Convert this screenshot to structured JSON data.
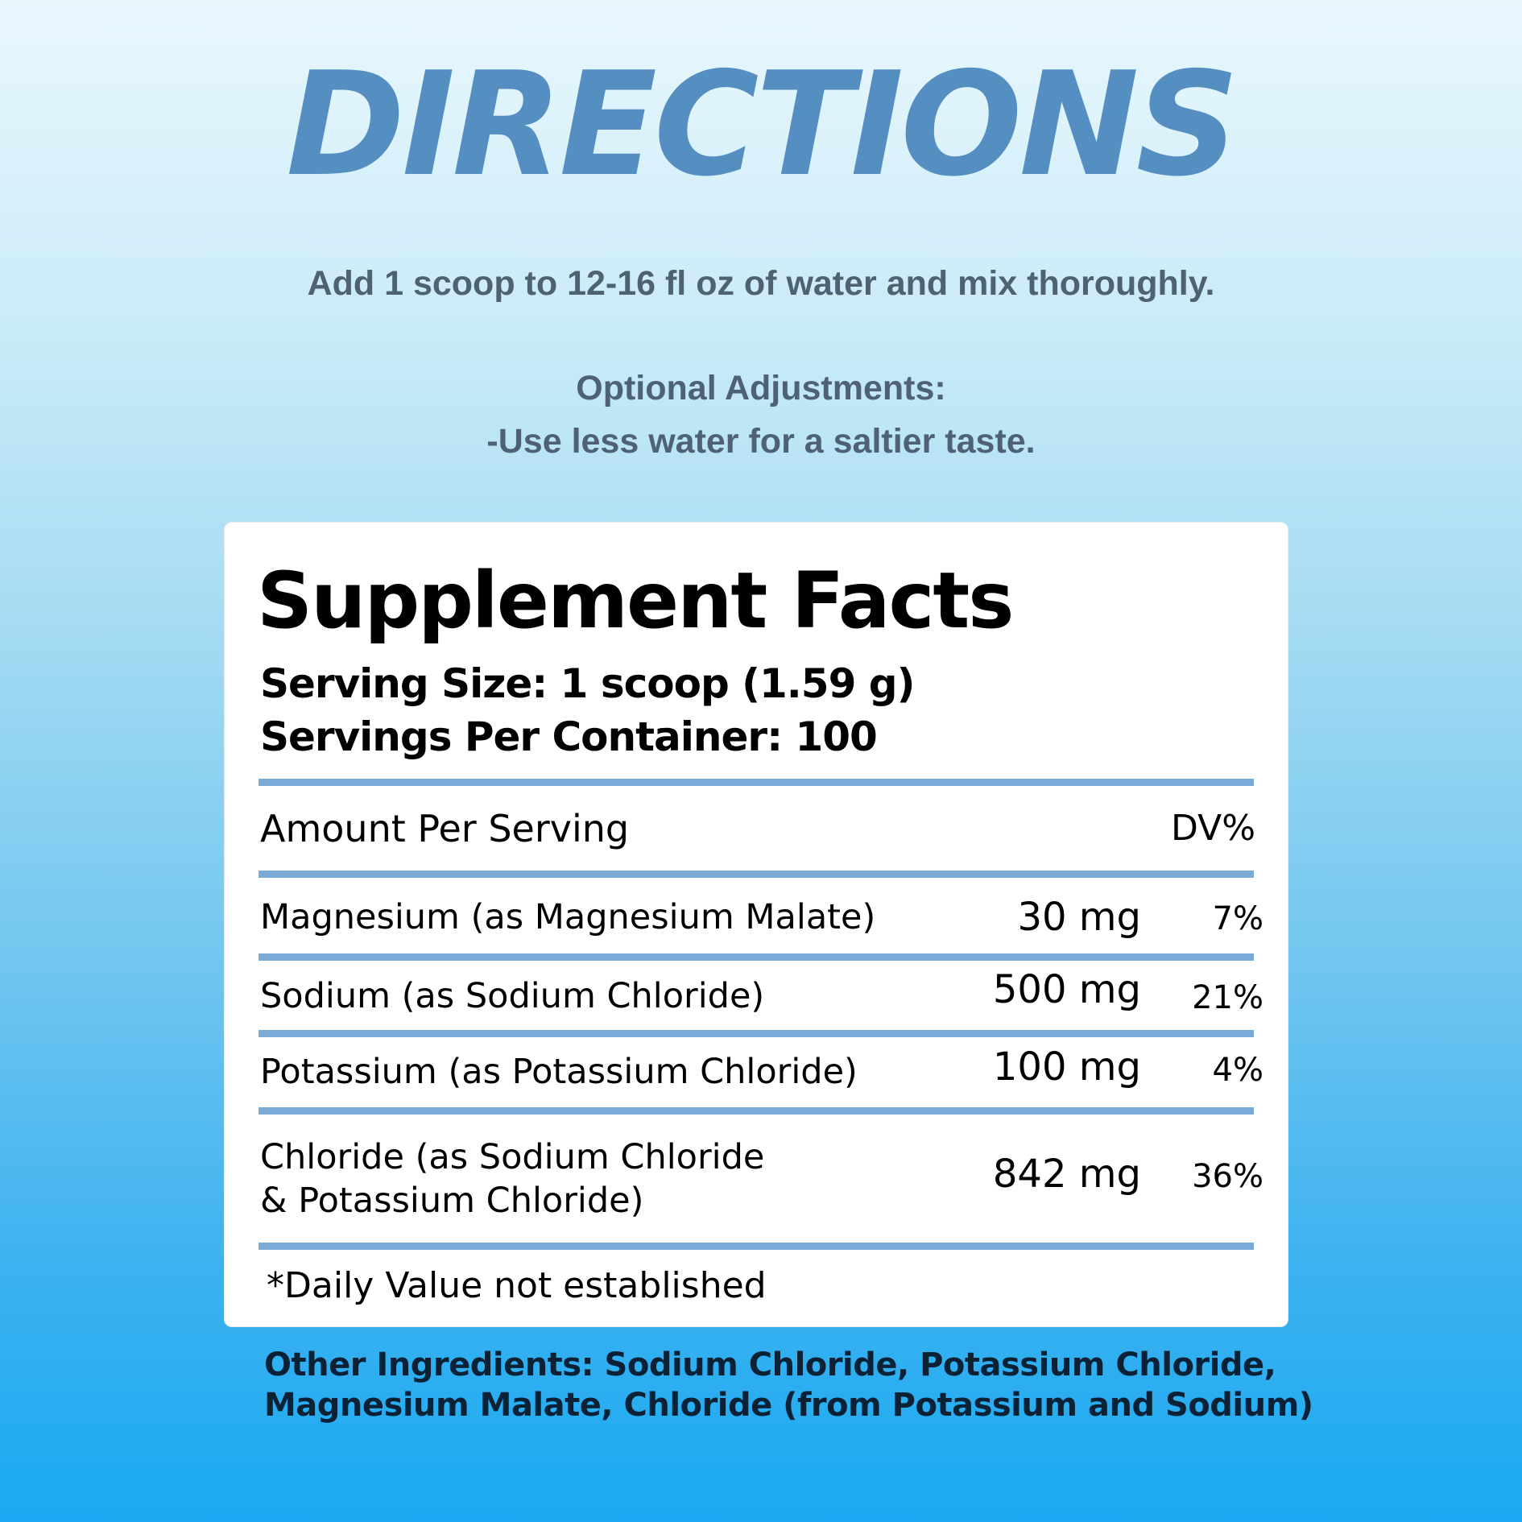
{
  "directions": {
    "title": "DIRECTIONS",
    "instruction": "Add 1 scoop to 12-16 fl oz of water and mix thoroughly.",
    "optional_heading": "Optional Adjustments:",
    "optional_item": "-Use less water for a saltier taste."
  },
  "facts": {
    "title": "Supplement Facts",
    "serving_size": "Serving Size: 1 scoop (1.59 g)",
    "servings_per_container": "Servings Per Container: 100",
    "amount_header": "Amount Per Serving",
    "dv_header": "DV%",
    "rows": [
      {
        "name": "Magnesium (as Magnesium Malate)",
        "amount": "30 mg",
        "dv": "7%"
      },
      {
        "name": "Sodium (as Sodium Chloride)",
        "amount": "500 mg",
        "dv": "21%"
      },
      {
        "name": "Potassium (as Potassium Chloride)",
        "amount": "100 mg",
        "dv": "4%"
      },
      {
        "name_line1": "Chloride (as Sodium Chloride",
        "name_line2": "& Potassium Chloride)",
        "amount": "842 mg",
        "dv": "36%"
      }
    ],
    "footnote": "*Daily Value not established"
  },
  "other_ingredients": {
    "line1": "Other Ingredients: Sodium Chloride, Potassium Chloride,",
    "line2": "Magnesium Malate, Chloride (from Potassium and Sodium)"
  },
  "colors": {
    "title": "#558fc1",
    "body_text": "#4f6275",
    "rule": "#7aaad6"
  }
}
